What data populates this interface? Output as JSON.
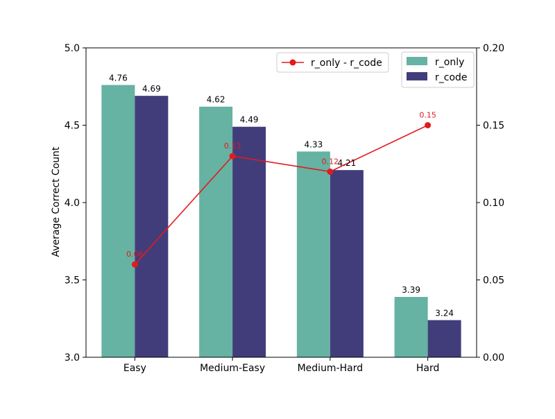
{
  "chart_data": {
    "type": "bar",
    "categories": [
      "Easy",
      "Medium-Easy",
      "Medium-Hard",
      "Hard"
    ],
    "series": [
      {
        "name": "r_only",
        "type": "bar",
        "axis": "left",
        "color": "#66b2a3",
        "values": [
          4.76,
          4.62,
          4.33,
          3.39
        ]
      },
      {
        "name": "r_code",
        "type": "bar",
        "axis": "left",
        "color": "#413d7b",
        "values": [
          4.69,
          4.49,
          4.21,
          3.24
        ]
      },
      {
        "name": "r_only - r_code",
        "type": "line",
        "axis": "right",
        "color": "#e31a1c",
        "values": [
          0.06,
          0.13,
          0.12,
          0.15
        ]
      }
    ],
    "bar_labels": [
      [
        "4.76",
        "4.62",
        "4.33",
        "3.39"
      ],
      [
        "4.69",
        "4.49",
        "4.21",
        "3.24"
      ]
    ],
    "line_labels": [
      "0.06",
      "0.13",
      "0.12",
      "0.15"
    ],
    "ylabel": "Average Correct Count",
    "ylim": [
      3.0,
      5.0
    ],
    "yticks": [
      "3.0",
      "3.5",
      "4.0",
      "4.5",
      "5.0"
    ],
    "y2lim": [
      0.0,
      0.2
    ],
    "y2ticks": [
      "0.00",
      "0.05",
      "0.10",
      "0.15",
      "0.20"
    ],
    "grid": false,
    "legend": [
      {
        "placement": "top-center",
        "entries": [
          "r_only - r_code"
        ]
      },
      {
        "placement": "top-right",
        "entries": [
          "r_only",
          "r_code"
        ]
      }
    ]
  }
}
